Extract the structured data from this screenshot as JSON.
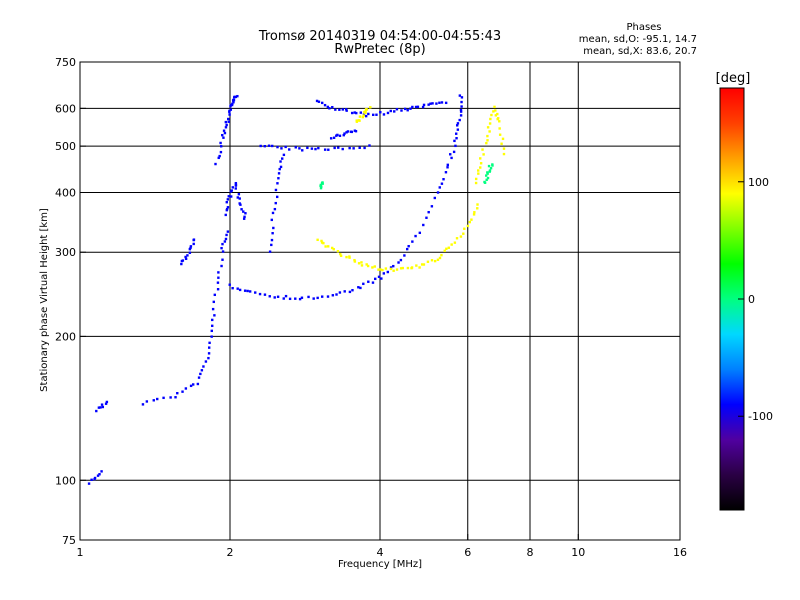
{
  "chart_data": {
    "type": "scatter",
    "title": "Tromsø 20140319 04:54:00-04:55:43",
    "subtitle": "RwPretec (8p)",
    "stats_title": "Phases",
    "stats_line1": "mean, sd,O: -95.1, 14.7",
    "stats_line2": "mean, sd,X:  83.6, 20.7",
    "xlabel": "Frequency [MHz]",
    "ylabel": "Stationary phase Virtual Height [km]",
    "xscale": "log",
    "yscale": "log",
    "xlim": [
      1,
      16
    ],
    "ylim": [
      75,
      750
    ],
    "x_ticks": [
      1,
      2,
      4,
      6,
      8,
      10,
      16
    ],
    "y_ticks": [
      75,
      100,
      200,
      300,
      400,
      500,
      600,
      750
    ],
    "grid_x": [
      2,
      4,
      6,
      8,
      10
    ],
    "grid_y": [
      100,
      200,
      300,
      400,
      500,
      600
    ],
    "colorbar": {
      "label": "[deg]",
      "range": [
        -180,
        180
      ],
      "ticks": [
        100,
        0,
        -100
      ],
      "colors": [
        "#000000",
        "#2a0044",
        "#5000a0",
        "#0000ff",
        "#0080ff",
        "#00d8ff",
        "#00ff80",
        "#00ff00",
        "#80ff00",
        "#ffff00",
        "#ffa000",
        "#ff4000",
        "#ff0000"
      ]
    },
    "series": [
      {
        "color_value": -100,
        "traces": [
          {
            "f": [
              1.05,
              1.1
            ],
            "h": [
              99,
              104
            ]
          },
          {
            "f": [
              1.08,
              1.13
            ],
            "h": [
              140,
              146
            ]
          },
          {
            "f": [
              1.33,
              1.55,
              1.72,
              1.8,
              1.84,
              1.88,
              1.93,
              1.97
            ],
            "h": [
              145,
              150,
              160,
              180,
              210,
              250,
              300,
              330
            ]
          },
          {
            "f": [
              1.6,
              1.66,
              1.7
            ],
            "h": [
              285,
              300,
              320
            ]
          },
          {
            "f": [
              1.88,
              1.93,
              1.97,
              2.0,
              2.03,
              2.06
            ],
            "h": [
              460,
              520,
              560,
              600,
              620,
              640
            ]
          },
          {
            "f": [
              1.95,
              2.0,
              2.05,
              2.1,
              2.15
            ],
            "h": [
              360,
              390,
              420,
              380,
              350
            ]
          },
          {
            "f": [
              2.0,
              2.2,
              2.5,
              2.8,
              3.2,
              3.6,
              4.0
            ],
            "h": [
              255,
              248,
              242,
              240,
              243,
              252,
              265
            ]
          },
          {
            "f": [
              4.0,
              4.4,
              4.8,
              5.2,
              5.5,
              5.7,
              5.8,
              5.82
            ],
            "h": [
              265,
              290,
              330,
              400,
              460,
              520,
              580,
              640
            ]
          },
          {
            "f": [
              2.3,
              2.6,
              2.9,
              3.3,
              3.8
            ],
            "h": [
              500,
              495,
              492,
              495,
              500
            ]
          },
          {
            "f": [
              2.4,
              2.45,
              2.5,
              2.55
            ],
            "h": [
              300,
              360,
              430,
              480
            ]
          },
          {
            "f": [
              3.2,
              3.4,
              3.6
            ],
            "h": [
              520,
              530,
              540
            ]
          },
          {
            "f": [
              3.0,
              3.2,
              3.5,
              3.8,
              4.2,
              4.6,
              5.0,
              5.4
            ],
            "h": [
              620,
              600,
              590,
              580,
              590,
              600,
              610,
              620
            ]
          }
        ]
      },
      {
        "color_value": 100,
        "traces": [
          {
            "f": [
              3.0,
              3.2,
              3.45,
              3.7,
              4.0,
              4.4,
              4.8,
              5.2,
              5.6,
              6.0,
              6.3
            ],
            "h": [
              320,
              305,
              292,
              282,
              277,
              276,
              280,
              290,
              310,
              340,
              380
            ]
          },
          {
            "f": [
              6.2,
              6.4,
              6.6,
              6.8,
              6.95,
              7.1
            ],
            "h": [
              420,
              470,
              540,
              600,
              560,
              480
            ]
          },
          {
            "f": [
              3.6,
              3.7,
              3.8
            ],
            "h": [
              560,
              580,
              600
            ]
          }
        ]
      },
      {
        "color_value": 0,
        "traces": [
          {
            "f": [
              6.5,
              6.6,
              6.7
            ],
            "h": [
              420,
              440,
              460
            ]
          },
          {
            "f": [
              3.05,
              3.08
            ],
            "h": [
              410,
              420
            ]
          }
        ]
      }
    ]
  }
}
